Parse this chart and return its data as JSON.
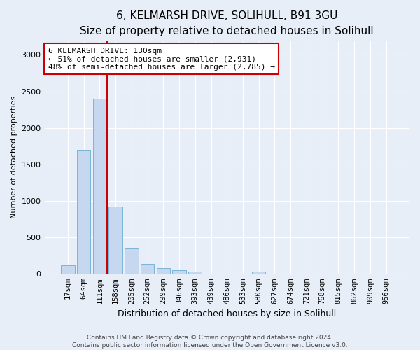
{
  "title": "6, KELMARSH DRIVE, SOLIHULL, B91 3GU",
  "subtitle": "Size of property relative to detached houses in Solihull",
  "xlabel": "Distribution of detached houses by size in Solihull",
  "ylabel": "Number of detached properties",
  "bar_labels": [
    "17sqm",
    "64sqm",
    "111sqm",
    "158sqm",
    "205sqm",
    "252sqm",
    "299sqm",
    "346sqm",
    "393sqm",
    "439sqm",
    "486sqm",
    "533sqm",
    "580sqm",
    "627sqm",
    "674sqm",
    "721sqm",
    "768sqm",
    "815sqm",
    "862sqm",
    "909sqm",
    "956sqm"
  ],
  "bar_values": [
    120,
    1700,
    2400,
    920,
    350,
    140,
    80,
    50,
    35,
    5,
    5,
    5,
    30,
    5,
    0,
    0,
    0,
    0,
    0,
    0,
    0
  ],
  "bar_color": "#c5d8f0",
  "bar_edge_color": "#6aaed6",
  "property_line_label": "6 KELMARSH DRIVE: 130sqm",
  "annotation_line1": "← 51% of detached houses are smaller (2,931)",
  "annotation_line2": "48% of semi-detached houses are larger (2,785) →",
  "annotation_box_color": "#ffffff",
  "annotation_box_edge_color": "#cc0000",
  "vline_color": "#cc0000",
  "vline_x": 2.45,
  "ylim": [
    0,
    3200
  ],
  "yticks": [
    0,
    500,
    1000,
    1500,
    2000,
    2500,
    3000
  ],
  "footer_line1": "Contains HM Land Registry data © Crown copyright and database right 2024.",
  "footer_line2": "Contains public sector information licensed under the Open Government Licence v3.0.",
  "bg_color": "#e8eef8",
  "plot_bg_color": "#e8eef8",
  "title_fontsize": 11,
  "subtitle_fontsize": 10,
  "xlabel_fontsize": 9,
  "ylabel_fontsize": 8,
  "tick_fontsize": 7.5,
  "footer_fontsize": 6.5
}
